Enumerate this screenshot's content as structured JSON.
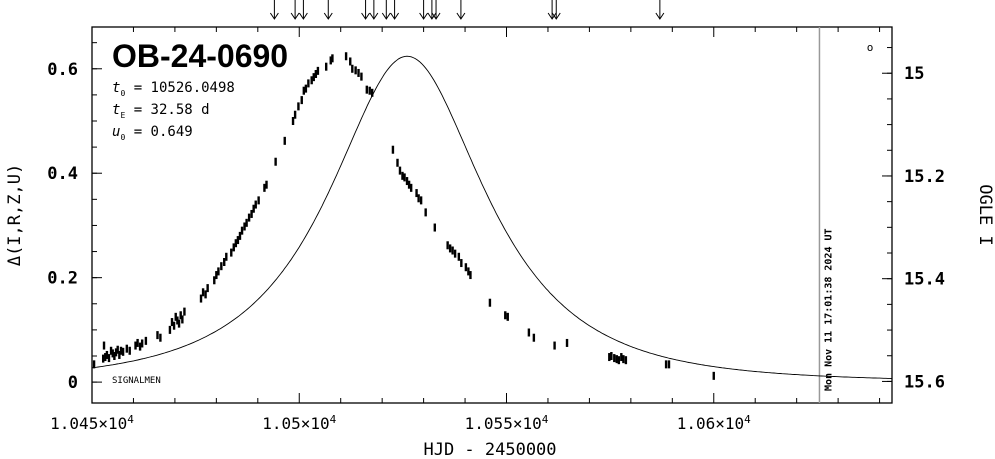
{
  "chart_data": {
    "type": "scatter",
    "title": "OB-24-0690",
    "params": [
      {
        "sym": "t",
        "sub": "0",
        "text": " = 10526.0498"
      },
      {
        "sym": "t",
        "sub": "E",
        "text": " = 32.58 d"
      },
      {
        "sym": "u",
        "sub": "0",
        "text": " = 0.649"
      }
    ],
    "xlabel": "HJD - 2450000",
    "ylabel_left": "Δ(I,R,Z,U)",
    "ylabel_right": "OGLE I",
    "xlim": [
      10450,
      10643
    ],
    "ylim_left": [
      -0.04,
      0.68
    ],
    "ylim_right": [
      15.642,
      14.91
    ],
    "x_ticks": [
      {
        "value": 10450,
        "mantissa": "1.045",
        "exp": "4"
      },
      {
        "value": 10500,
        "mantissa": "1.05",
        "exp": "4"
      },
      {
        "value": 10550,
        "mantissa": "1.055",
        "exp": "4"
      },
      {
        "value": 10600,
        "mantissa": "1.06",
        "exp": "4"
      }
    ],
    "y_ticks_left": [
      {
        "value": 0,
        "label": "0"
      },
      {
        "value": 0.2,
        "label": "0.2"
      },
      {
        "value": 0.4,
        "label": "0.4"
      },
      {
        "value": 0.6,
        "label": "0.6"
      }
    ],
    "y_ticks_right": [
      {
        "value": 15.0,
        "label": "15"
      },
      {
        "value": 15.2,
        "label": "15.2"
      },
      {
        "value": 15.4,
        "label": "15.4"
      },
      {
        "value": 15.6,
        "label": "15.6"
      }
    ],
    "model": {
      "t0": 10526.0498,
      "tE": 32.58,
      "u0": 0.649
    },
    "arrows_x": [
      10494,
      10499,
      10501,
      10507,
      10516,
      10518,
      10521,
      10523,
      10530,
      10532,
      10533,
      10539,
      10561,
      10562,
      10587
    ],
    "now_line": {
      "x": 10625.5,
      "label": "Mon Nov 11 17:01:38 2024 UT"
    },
    "signalmen_label": "SIGNALMEN",
    "marker_symbol": "o",
    "colors": {
      "axis": "#000000",
      "data": "#000000",
      "now_line": "#999999",
      "now_label": "#888888"
    },
    "points": [
      {
        "x": 10450.5,
        "y": 0.034
      },
      {
        "x": 10452.7,
        "y": 0.045
      },
      {
        "x": 10452.9,
        "y": 0.07
      },
      {
        "x": 10453.2,
        "y": 0.048
      },
      {
        "x": 10453.6,
        "y": 0.052
      },
      {
        "x": 10454.1,
        "y": 0.046
      },
      {
        "x": 10454.6,
        "y": 0.06
      },
      {
        "x": 10455.0,
        "y": 0.055
      },
      {
        "x": 10455.4,
        "y": 0.05
      },
      {
        "x": 10455.8,
        "y": 0.057
      },
      {
        "x": 10456.2,
        "y": 0.062
      },
      {
        "x": 10456.6,
        "y": 0.052
      },
      {
        "x": 10457.0,
        "y": 0.06
      },
      {
        "x": 10457.5,
        "y": 0.058
      },
      {
        "x": 10458.4,
        "y": 0.064
      },
      {
        "x": 10459.1,
        "y": 0.06
      },
      {
        "x": 10460.5,
        "y": 0.07
      },
      {
        "x": 10461.0,
        "y": 0.075
      },
      {
        "x": 10461.6,
        "y": 0.068
      },
      {
        "x": 10462.1,
        "y": 0.074
      },
      {
        "x": 10463.0,
        "y": 0.079
      },
      {
        "x": 10465.8,
        "y": 0.09
      },
      {
        "x": 10466.5,
        "y": 0.085
      },
      {
        "x": 10468.8,
        "y": 0.1
      },
      {
        "x": 10469.3,
        "y": 0.115
      },
      {
        "x": 10469.8,
        "y": 0.108
      },
      {
        "x": 10470.2,
        "y": 0.125
      },
      {
        "x": 10470.6,
        "y": 0.118
      },
      {
        "x": 10471.0,
        "y": 0.112
      },
      {
        "x": 10471.4,
        "y": 0.128
      },
      {
        "x": 10471.8,
        "y": 0.12
      },
      {
        "x": 10472.3,
        "y": 0.135
      },
      {
        "x": 10476.3,
        "y": 0.16
      },
      {
        "x": 10476.8,
        "y": 0.172
      },
      {
        "x": 10477.4,
        "y": 0.168
      },
      {
        "x": 10477.9,
        "y": 0.18
      },
      {
        "x": 10479.5,
        "y": 0.195
      },
      {
        "x": 10480.0,
        "y": 0.205
      },
      {
        "x": 10480.5,
        "y": 0.212
      },
      {
        "x": 10481.2,
        "y": 0.222
      },
      {
        "x": 10481.9,
        "y": 0.23
      },
      {
        "x": 10482.4,
        "y": 0.24
      },
      {
        "x": 10483.6,
        "y": 0.248
      },
      {
        "x": 10484.2,
        "y": 0.258
      },
      {
        "x": 10484.7,
        "y": 0.266
      },
      {
        "x": 10485.2,
        "y": 0.272
      },
      {
        "x": 10485.7,
        "y": 0.28
      },
      {
        "x": 10486.2,
        "y": 0.29
      },
      {
        "x": 10486.8,
        "y": 0.298
      },
      {
        "x": 10487.3,
        "y": 0.305
      },
      {
        "x": 10487.9,
        "y": 0.315
      },
      {
        "x": 10488.5,
        "y": 0.322
      },
      {
        "x": 10489.0,
        "y": 0.332
      },
      {
        "x": 10489.5,
        "y": 0.34
      },
      {
        "x": 10490.2,
        "y": 0.348
      },
      {
        "x": 10491.6,
        "y": 0.372
      },
      {
        "x": 10492.1,
        "y": 0.378
      },
      {
        "x": 10494.3,
        "y": 0.422
      },
      {
        "x": 10496.5,
        "y": 0.462
      },
      {
        "x": 10498.5,
        "y": 0.5
      },
      {
        "x": 10499.0,
        "y": 0.512
      },
      {
        "x": 10499.8,
        "y": 0.528
      },
      {
        "x": 10500.6,
        "y": 0.54
      },
      {
        "x": 10501.1,
        "y": 0.558
      },
      {
        "x": 10501.6,
        "y": 0.562
      },
      {
        "x": 10502.2,
        "y": 0.572
      },
      {
        "x": 10503.0,
        "y": 0.578
      },
      {
        "x": 10503.5,
        "y": 0.584
      },
      {
        "x": 10504.0,
        "y": 0.59
      },
      {
        "x": 10504.5,
        "y": 0.596
      },
      {
        "x": 10506.5,
        "y": 0.604
      },
      {
        "x": 10507.6,
        "y": 0.616
      },
      {
        "x": 10508.0,
        "y": 0.62
      },
      {
        "x": 10511.3,
        "y": 0.624
      },
      {
        "x": 10512.3,
        "y": 0.614
      },
      {
        "x": 10512.8,
        "y": 0.6
      },
      {
        "x": 10513.6,
        "y": 0.597
      },
      {
        "x": 10514.3,
        "y": 0.592
      },
      {
        "x": 10515.0,
        "y": 0.585
      },
      {
        "x": 10516.3,
        "y": 0.56
      },
      {
        "x": 10517.0,
        "y": 0.558
      },
      {
        "x": 10517.6,
        "y": 0.554
      },
      {
        "x": 10522.6,
        "y": 0.445
      },
      {
        "x": 10523.7,
        "y": 0.42
      },
      {
        "x": 10524.3,
        "y": 0.405
      },
      {
        "x": 10524.9,
        "y": 0.395
      },
      {
        "x": 10525.4,
        "y": 0.392
      },
      {
        "x": 10526.0,
        "y": 0.385
      },
      {
        "x": 10526.5,
        "y": 0.378
      },
      {
        "x": 10527.0,
        "y": 0.372
      },
      {
        "x": 10528.3,
        "y": 0.362
      },
      {
        "x": 10528.8,
        "y": 0.352
      },
      {
        "x": 10529.4,
        "y": 0.348
      },
      {
        "x": 10530.5,
        "y": 0.325
      },
      {
        "x": 10532.7,
        "y": 0.296
      },
      {
        "x": 10535.8,
        "y": 0.262
      },
      {
        "x": 10536.4,
        "y": 0.256
      },
      {
        "x": 10537.0,
        "y": 0.252
      },
      {
        "x": 10537.6,
        "y": 0.246
      },
      {
        "x": 10538.5,
        "y": 0.24
      },
      {
        "x": 10539.1,
        "y": 0.228
      },
      {
        "x": 10540.2,
        "y": 0.22
      },
      {
        "x": 10540.8,
        "y": 0.212
      },
      {
        "x": 10541.3,
        "y": 0.205
      },
      {
        "x": 10546.0,
        "y": 0.152
      },
      {
        "x": 10549.7,
        "y": 0.128
      },
      {
        "x": 10550.3,
        "y": 0.125
      },
      {
        "x": 10555.4,
        "y": 0.095
      },
      {
        "x": 10556.6,
        "y": 0.085
      },
      {
        "x": 10561.6,
        "y": 0.07
      },
      {
        "x": 10564.6,
        "y": 0.075
      },
      {
        "x": 10574.8,
        "y": 0.048
      },
      {
        "x": 10575.3,
        "y": 0.05
      },
      {
        "x": 10576.0,
        "y": 0.046
      },
      {
        "x": 10576.6,
        "y": 0.044
      },
      {
        "x": 10577.1,
        "y": 0.042
      },
      {
        "x": 10577.7,
        "y": 0.048
      },
      {
        "x": 10578.2,
        "y": 0.044
      },
      {
        "x": 10578.8,
        "y": 0.042
      },
      {
        "x": 10588.5,
        "y": 0.034
      },
      {
        "x": 10589.2,
        "y": 0.034
      },
      {
        "x": 10600.0,
        "y": 0.012
      }
    ]
  }
}
